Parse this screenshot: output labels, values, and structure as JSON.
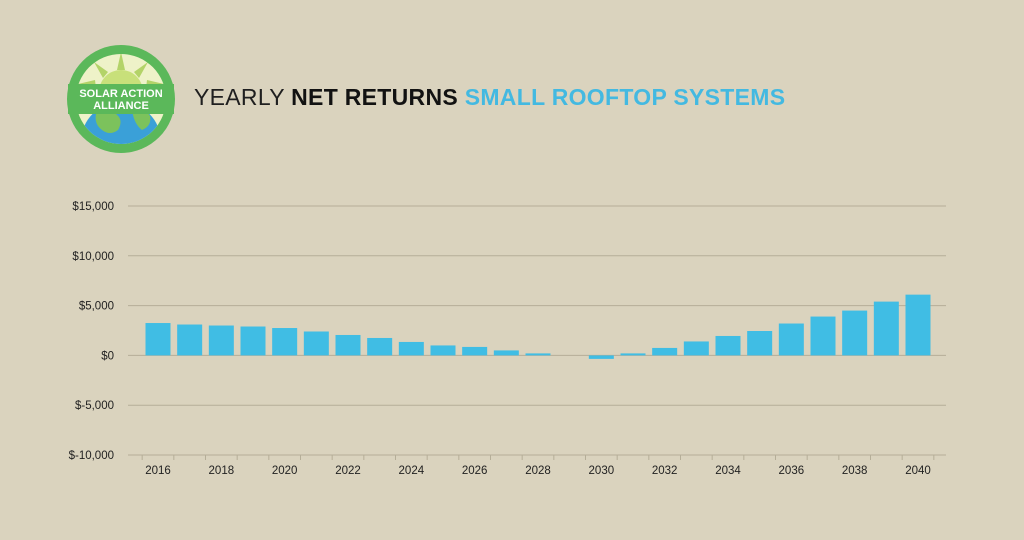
{
  "logo": {
    "line1": "SOLAR ACTION",
    "line2": "ALLIANCE",
    "ring_color": "#5bb85a",
    "sun_color": "#c8e07a",
    "globe_color": "#3aa0d8"
  },
  "title": {
    "part1": "YEARLY ",
    "part2": "NET RETURNS",
    "part3": " SMALL ROOFTOP SYSTEMS"
  },
  "colors": {
    "bar": "#40bde4",
    "grid": "#b5ae98",
    "background": "#dad3be"
  },
  "chart_data": {
    "type": "bar",
    "title": "YEARLY NET RETURNS SMALL ROOFTOP SYSTEMS",
    "xlabel": "",
    "ylabel": "",
    "ylim": [
      -10000,
      15000
    ],
    "yticks": [
      15000,
      10000,
      5000,
      0,
      -5000,
      -10000
    ],
    "ytick_labels": [
      "$15,000",
      "$10,000",
      "$5,000",
      "$0",
      "$-5,000",
      "$-10,000"
    ],
    "categories": [
      "2016",
      "2017",
      "2018",
      "2019",
      "2020",
      "2021",
      "2022",
      "2023",
      "2024",
      "2025",
      "2026",
      "2027",
      "2028",
      "2029",
      "2030",
      "2031",
      "2032",
      "2033",
      "2034",
      "2035",
      "2036",
      "2037",
      "2038",
      "2039",
      "2040"
    ],
    "xtick_labels": [
      "2016",
      "",
      "2018",
      "",
      "2020",
      "",
      "2022",
      "",
      "2024",
      "",
      "2026",
      "",
      "2028",
      "",
      "2030",
      "",
      "2032",
      "",
      "2034",
      "",
      "2036",
      "",
      "2038",
      "",
      "2040"
    ],
    "values": [
      3250,
      3100,
      3000,
      2900,
      2750,
      2400,
      2050,
      1750,
      1350,
      1000,
      850,
      500,
      200,
      0,
      -350,
      200,
      750,
      1400,
      1950,
      2450,
      3200,
      3900,
      4500,
      5400,
      6100
    ],
    "grid": true,
    "legend": "none"
  }
}
